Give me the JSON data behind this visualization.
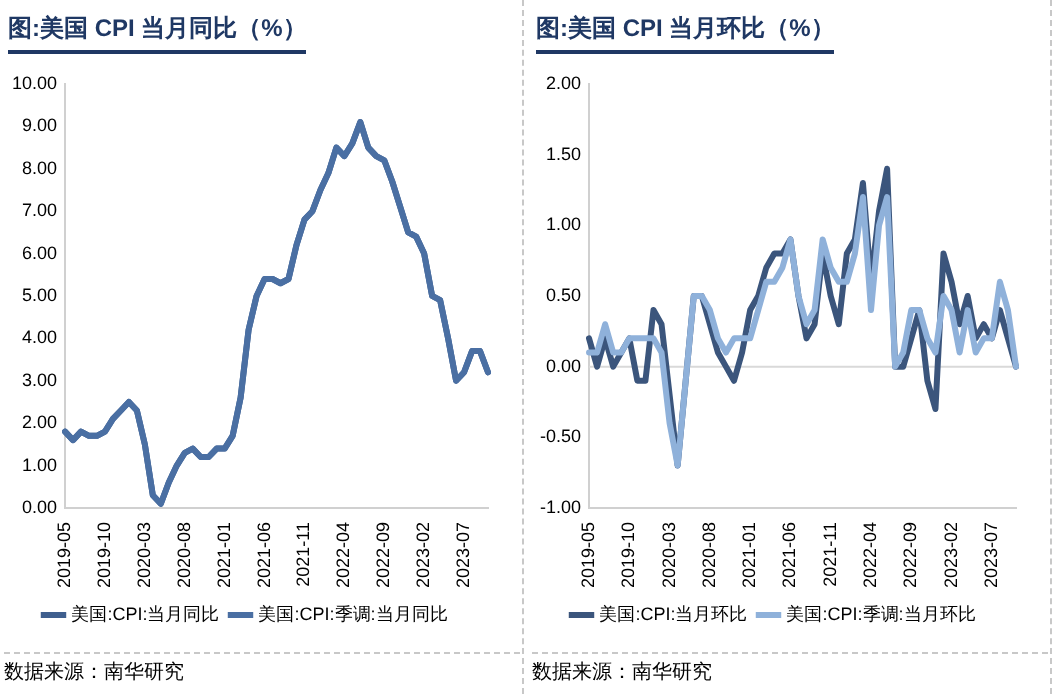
{
  "chart_data": [
    {
      "type": "line",
      "title": "图:美国 CPI 当月同比（%）",
      "categories": [
        "2019-05",
        null,
        null,
        null,
        null,
        "2019-10",
        null,
        null,
        null,
        null,
        "2020-03",
        null,
        null,
        null,
        null,
        "2020-08",
        null,
        null,
        null,
        null,
        "2021-01",
        null,
        null,
        null,
        null,
        "2021-06",
        null,
        null,
        null,
        null,
        "2021-11",
        null,
        null,
        null,
        null,
        "2022-04",
        null,
        null,
        null,
        null,
        "2022-09",
        null,
        null,
        null,
        null,
        "2023-02",
        null,
        null,
        null,
        null,
        "2023-07",
        null,
        null,
        null
      ],
      "series": [
        {
          "name": "美国:CPI:当月同比",
          "color": "#3f5f8e",
          "values": [
            1.8,
            1.6,
            1.8,
            1.7,
            1.7,
            1.8,
            2.1,
            2.3,
            2.5,
            2.3,
            1.5,
            0.3,
            0.1,
            0.6,
            1.0,
            1.3,
            1.4,
            1.2,
            1.2,
            1.4,
            1.4,
            1.7,
            2.6,
            4.2,
            5.0,
            5.4,
            5.4,
            5.3,
            5.4,
            6.2,
            6.8,
            7.0,
            7.5,
            7.9,
            8.5,
            8.3,
            8.6,
            9.1,
            8.5,
            8.3,
            8.2,
            7.7,
            7.1,
            6.5,
            6.4,
            6.0,
            5.0,
            4.9,
            4.0,
            3.0,
            3.2,
            3.7,
            3.7,
            3.2
          ]
        },
        {
          "name": "美国:CPI:季调:当月同比",
          "color": "#4a6fa3",
          "values": [
            1.8,
            1.6,
            1.8,
            1.7,
            1.7,
            1.8,
            2.1,
            2.3,
            2.5,
            2.3,
            1.5,
            0.3,
            0.1,
            0.6,
            1.0,
            1.3,
            1.4,
            1.2,
            1.2,
            1.4,
            1.4,
            1.7,
            2.6,
            4.2,
            5.0,
            5.4,
            5.4,
            5.3,
            5.4,
            6.2,
            6.8,
            7.0,
            7.5,
            7.9,
            8.5,
            8.3,
            8.6,
            9.1,
            8.5,
            8.3,
            8.2,
            7.7,
            7.1,
            6.5,
            6.4,
            6.0,
            5.0,
            4.9,
            4.0,
            3.0,
            3.2,
            3.7,
            3.7,
            3.2
          ]
        }
      ],
      "ylim": [
        0,
        10
      ],
      "yticks": [
        {
          "value": 0,
          "label": "0.00"
        },
        {
          "value": 1,
          "label": "1.00"
        },
        {
          "value": 2,
          "label": "2.00"
        },
        {
          "value": 3,
          "label": "3.00"
        },
        {
          "value": 4,
          "label": "4.00"
        },
        {
          "value": 5,
          "label": "5.00"
        },
        {
          "value": 6,
          "label": "6.00"
        },
        {
          "value": 7,
          "label": "7.00"
        },
        {
          "value": 8,
          "label": "8.00"
        },
        {
          "value": 9,
          "label": "9.00"
        },
        {
          "value": 10,
          "label": "10.00"
        }
      ],
      "grid": false,
      "legend": "bottom",
      "annotations": [
        "数据来源：南华研究"
      ]
    },
    {
      "type": "line",
      "title": "图:美国 CPI 当月环比（%）",
      "categories": [
        "2019-05",
        null,
        null,
        null,
        null,
        "2019-10",
        null,
        null,
        null,
        null,
        "2020-03",
        null,
        null,
        null,
        null,
        "2020-08",
        null,
        null,
        null,
        null,
        "2021-01",
        null,
        null,
        null,
        null,
        "2021-06",
        null,
        null,
        null,
        null,
        "2021-11",
        null,
        null,
        null,
        null,
        "2022-04",
        null,
        null,
        null,
        null,
        "2022-09",
        null,
        null,
        null,
        null,
        "2023-02",
        null,
        null,
        null,
        null,
        "2023-07",
        null,
        null,
        null
      ],
      "series": [
        {
          "name": "美国:CPI:当月环比",
          "color": "#3b557c",
          "values": [
            0.2,
            0.0,
            0.2,
            0.0,
            0.1,
            0.2,
            -0.1,
            -0.1,
            0.4,
            0.3,
            -0.2,
            -0.7,
            -0.1,
            0.5,
            0.5,
            0.3,
            0.1,
            0.0,
            -0.1,
            0.1,
            0.4,
            0.5,
            0.7,
            0.8,
            0.8,
            0.9,
            0.5,
            0.2,
            0.3,
            0.8,
            0.5,
            0.3,
            0.8,
            0.9,
            1.3,
            0.6,
            1.1,
            1.4,
            0.0,
            0.0,
            0.2,
            0.4,
            -0.1,
            -0.3,
            0.8,
            0.6,
            0.3,
            0.5,
            0.2,
            0.3,
            0.2,
            0.4,
            0.2,
            0.0
          ]
        },
        {
          "name": "美国:CPI:季调:当月环比",
          "color": "#8fb1da",
          "values": [
            0.1,
            0.1,
            0.3,
            0.1,
            0.1,
            0.2,
            0.2,
            0.2,
            0.2,
            0.1,
            -0.4,
            -0.7,
            -0.1,
            0.5,
            0.5,
            0.4,
            0.2,
            0.1,
            0.2,
            0.2,
            0.2,
            0.4,
            0.6,
            0.6,
            0.7,
            0.9,
            0.5,
            0.3,
            0.4,
            0.9,
            0.7,
            0.6,
            0.6,
            0.8,
            1.2,
            0.4,
            1.0,
            1.2,
            0.0,
            0.1,
            0.4,
            0.4,
            0.2,
            0.1,
            0.5,
            0.4,
            0.1,
            0.4,
            0.1,
            0.2,
            0.2,
            0.6,
            0.4,
            0.0
          ]
        }
      ],
      "ylim": [
        -1,
        2
      ],
      "yticks": [
        {
          "value": -1,
          "label": "-1.00"
        },
        {
          "value": -0.5,
          "label": "-0.50"
        },
        {
          "value": 0,
          "label": "0.00"
        },
        {
          "value": 0.5,
          "label": "0.50"
        },
        {
          "value": 1,
          "label": "1.00"
        },
        {
          "value": 1.5,
          "label": "1.50"
        },
        {
          "value": 2,
          "label": "2.00"
        }
      ],
      "ref_lines": [
        {
          "axis": "y",
          "value": 0,
          "color": "#d9d9d9"
        }
      ],
      "grid": false,
      "legend": "bottom",
      "annotations": [
        "数据来源：南华研究"
      ]
    }
  ]
}
